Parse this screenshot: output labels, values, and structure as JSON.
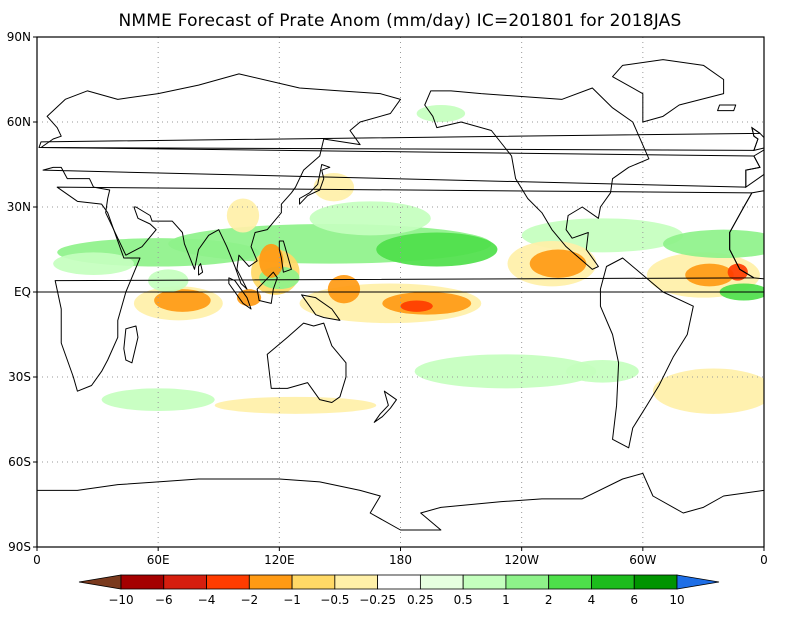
{
  "title": "NMME Forecast of Prate Anom (mm/day) IC=201801 for 2018JAS",
  "y_ticks": [
    {
      "label": "90N",
      "lat": 90
    },
    {
      "label": "60N",
      "lat": 60
    },
    {
      "label": "30N",
      "lat": 30
    },
    {
      "label": "EQ",
      "lat": 0
    },
    {
      "label": "30S",
      "lat": -30
    },
    {
      "label": "60S",
      "lat": -60
    },
    {
      "label": "90S",
      "lat": -90
    }
  ],
  "x_ticks": [
    {
      "label": "0",
      "lon": 0
    },
    {
      "label": "60E",
      "lon": 60
    },
    {
      "label": "120E",
      "lon": 120
    },
    {
      "label": "180",
      "lon": 180
    },
    {
      "label": "120W",
      "lon": 240
    },
    {
      "label": "60W",
      "lon": 300
    },
    {
      "label": "0",
      "lon": 360
    }
  ],
  "colorbar": {
    "labels": [
      "−10",
      "−6",
      "−4",
      "−2",
      "−1",
      "−0.5",
      "−0.25",
      "0.25",
      "0.5",
      "1",
      "2",
      "4",
      "6",
      "10"
    ],
    "colors": [
      "#7a3a1e",
      "#a40000",
      "#d61e0e",
      "#ff3c00",
      "#ff9a14",
      "#ffd966",
      "#fff0a8",
      "#ffffff",
      "#e6ffe0",
      "#c4ffbe",
      "#8ef28a",
      "#4ee04a",
      "#1cbc1c",
      "#009400",
      "#1e6ee6"
    ]
  },
  "anomaly_regions": [
    {
      "lon": 193,
      "lat": -4,
      "rx": 22,
      "ry": 4,
      "level": "-2"
    },
    {
      "lon": 188,
      "lat": -5,
      "rx": 8,
      "ry": 2,
      "level": "-4"
    },
    {
      "lon": 175,
      "lat": -4,
      "rx": 45,
      "ry": 7,
      "level": "-0.5"
    },
    {
      "lon": 152,
      "lat": 1,
      "rx": 8,
      "ry": 5,
      "level": "-2"
    },
    {
      "lon": 72,
      "lat": -3,
      "rx": 14,
      "ry": 4,
      "level": "-2"
    },
    {
      "lon": 70,
      "lat": -4,
      "rx": 22,
      "ry": 6,
      "level": "-0.5"
    },
    {
      "lon": 118,
      "lat": 7,
      "rx": 12,
      "ry": 8,
      "level": "-1"
    },
    {
      "lon": 116,
      "lat": 11,
      "rx": 6,
      "ry": 6,
      "level": "-2"
    },
    {
      "lon": 258,
      "lat": 10,
      "rx": 14,
      "ry": 5,
      "level": "-2"
    },
    {
      "lon": 255,
      "lat": 10,
      "rx": 22,
      "ry": 8,
      "level": "-0.5"
    },
    {
      "lon": 333,
      "lat": 6,
      "rx": 12,
      "ry": 4,
      "level": "-2"
    },
    {
      "lon": 330,
      "lat": 6,
      "rx": 28,
      "ry": 8,
      "level": "-0.5"
    },
    {
      "lon": 347,
      "lat": 7,
      "rx": 5,
      "ry": 3,
      "level": "-4"
    },
    {
      "lon": 335,
      "lat": -35,
      "rx": 30,
      "ry": 8,
      "level": "-0.5"
    },
    {
      "lon": 147,
      "lat": 37,
      "rx": 10,
      "ry": 5,
      "level": "-0.5"
    },
    {
      "lon": 105,
      "lat": -2,
      "rx": 6,
      "ry": 3,
      "level": "-2"
    },
    {
      "lon": 102,
      "lat": 27,
      "rx": 8,
      "ry": 6,
      "level": "-0.5"
    },
    {
      "lon": 65,
      "lat": 4,
      "rx": 10,
      "ry": 4,
      "level": "0.5"
    },
    {
      "lon": 145,
      "lat": 17,
      "rx": 80,
      "ry": 7,
      "level": "1"
    },
    {
      "lon": 198,
      "lat": 15,
      "rx": 30,
      "ry": 6,
      "level": "2"
    },
    {
      "lon": 60,
      "lat": 14,
      "rx": 50,
      "ry": 5,
      "level": "1"
    },
    {
      "lon": 165,
      "lat": 26,
      "rx": 30,
      "ry": 6,
      "level": "0.5"
    },
    {
      "lon": 280,
      "lat": 20,
      "rx": 40,
      "ry": 6,
      "level": "0.5"
    },
    {
      "lon": 340,
      "lat": 17,
      "rx": 30,
      "ry": 5,
      "level": "1"
    },
    {
      "lon": 350,
      "lat": 0,
      "rx": 12,
      "ry": 3,
      "level": "2"
    },
    {
      "lon": 60,
      "lat": -38,
      "rx": 28,
      "ry": 4,
      "level": "0.5"
    },
    {
      "lon": 232,
      "lat": -28,
      "rx": 45,
      "ry": 6,
      "level": "0.5"
    },
    {
      "lon": 280,
      "lat": -28,
      "rx": 18,
      "ry": 4,
      "level": "0.5"
    },
    {
      "lon": 128,
      "lat": -40,
      "rx": 40,
      "ry": 3,
      "level": "-0.5"
    },
    {
      "lon": 200,
      "lat": 63,
      "rx": 12,
      "ry": 3,
      "level": "0.5"
    },
    {
      "lon": 120,
      "lat": 5,
      "rx": 10,
      "ry": 4,
      "level": "1"
    },
    {
      "lon": 28,
      "lat": 10,
      "rx": 20,
      "ry": 4,
      "level": "0.5"
    }
  ],
  "land_outlines": [
    {
      "name": "africa",
      "points": [
        [
          -17,
          15
        ],
        [
          -17,
          21
        ],
        [
          -10,
          30
        ],
        [
          -6,
          35
        ],
        [
          10,
          37
        ],
        [
          20,
          32
        ],
        [
          32,
          31
        ],
        [
          35,
          28
        ],
        [
          43,
          12
        ],
        [
          51,
          12
        ],
        [
          44,
          0
        ],
        [
          40,
          -10
        ],
        [
          40,
          -16
        ],
        [
          35,
          -24
        ],
        [
          32,
          -28
        ],
        [
          27,
          -33
        ],
        [
          20,
          -35
        ],
        [
          18,
          -30
        ],
        [
          12,
          -18
        ],
        [
          12,
          -6
        ],
        [
          9,
          4
        ],
        [
          -5,
          5
        ],
        [
          -12,
          8
        ],
        [
          -17,
          15
        ]
      ]
    },
    {
      "name": "eurasia",
      "points": [
        [
          -9,
          37
        ],
        [
          -9,
          43
        ],
        [
          -2,
          44
        ],
        [
          -5,
          48
        ],
        [
          2,
          51
        ],
        [
          8,
          54
        ],
        [
          12,
          55
        ],
        [
          10,
          58
        ],
        [
          5,
          62
        ],
        [
          14,
          68
        ],
        [
          25,
          71
        ],
        [
          40,
          68
        ],
        [
          60,
          70
        ],
        [
          80,
          73
        ],
        [
          100,
          77
        ],
        [
          130,
          72
        ],
        [
          150,
          71
        ],
        [
          170,
          70
        ],
        [
          180,
          68
        ],
        [
          175,
          63
        ],
        [
          160,
          60
        ],
        [
          155,
          57
        ],
        [
          160,
          52
        ],
        [
          142,
          54
        ],
        [
          140,
          48
        ],
        [
          132,
          43
        ],
        [
          128,
          37
        ],
        [
          126,
          35
        ],
        [
          121,
          31
        ],
        [
          121,
          28
        ],
        [
          114,
          22
        ],
        [
          108,
          21
        ],
        [
          106,
          16
        ],
        [
          109,
          11
        ],
        [
          105,
          9
        ],
        [
          100,
          13
        ],
        [
          99,
          8
        ],
        [
          104,
          1
        ],
        [
          101,
          3
        ],
        [
          98,
          9
        ],
        [
          94,
          16
        ],
        [
          90,
          22
        ],
        [
          85,
          20
        ],
        [
          80,
          15
        ],
        [
          78,
          8
        ],
        [
          73,
          17
        ],
        [
          72,
          21
        ],
        [
          67,
          25
        ],
        [
          57,
          25
        ],
        [
          56,
          27
        ],
        [
          49,
          30
        ],
        [
          48,
          30
        ],
        [
          50,
          26
        ],
        [
          56,
          24
        ],
        [
          59,
          22
        ],
        [
          52,
          16
        ],
        [
          44,
          13
        ],
        [
          38,
          22
        ],
        [
          34,
          28
        ],
        [
          35,
          33
        ],
        [
          36,
          36
        ],
        [
          28,
          37
        ],
        [
          26,
          40
        ],
        [
          20,
          40
        ],
        [
          15,
          40
        ],
        [
          12,
          44
        ],
        [
          8,
          44
        ],
        [
          3,
          43
        ],
        [
          -9,
          37
        ]
      ]
    },
    {
      "name": "north-america",
      "points": [
        [
          192,
          66
        ],
        [
          195,
          71
        ],
        [
          205,
          71
        ],
        [
          220,
          70
        ],
        [
          240,
          69
        ],
        [
          260,
          68
        ],
        [
          275,
          72
        ],
        [
          285,
          65
        ],
        [
          295,
          60
        ],
        [
          303,
          47
        ],
        [
          293,
          44
        ],
        [
          285,
          40
        ],
        [
          284,
          35
        ],
        [
          279,
          30
        ],
        [
          278,
          26
        ],
        [
          270,
          30
        ],
        [
          263,
          27
        ],
        [
          262,
          22
        ],
        [
          265,
          19
        ],
        [
          273,
          21
        ],
        [
          272,
          15
        ],
        [
          278,
          9
        ],
        [
          275,
          8
        ],
        [
          262,
          16
        ],
        [
          255,
          22
        ],
        [
          250,
          28
        ],
        [
          243,
          33
        ],
        [
          237,
          40
        ],
        [
          235,
          48
        ],
        [
          225,
          57
        ],
        [
          210,
          60
        ],
        [
          198,
          58
        ],
        [
          196,
          62
        ],
        [
          192,
          66
        ]
      ]
    },
    {
      "name": "south-america",
      "points": [
        [
          282,
          9
        ],
        [
          290,
          12
        ],
        [
          300,
          6
        ],
        [
          310,
          0
        ],
        [
          325,
          -5
        ],
        [
          322,
          -15
        ],
        [
          315,
          -23
        ],
        [
          308,
          -33
        ],
        [
          302,
          -40
        ],
        [
          295,
          -48
        ],
        [
          293,
          -55
        ],
        [
          285,
          -52
        ],
        [
          287,
          -40
        ],
        [
          288,
          -25
        ],
        [
          285,
          -15
        ],
        [
          279,
          -5
        ],
        [
          279,
          1
        ],
        [
          282,
          9
        ]
      ]
    },
    {
      "name": "australia",
      "points": [
        [
          114,
          -22
        ],
        [
          116,
          -34
        ],
        [
          124,
          -34
        ],
        [
          134,
          -32
        ],
        [
          140,
          -38
        ],
        [
          146,
          -39
        ],
        [
          150,
          -37
        ],
        [
          153,
          -30
        ],
        [
          153,
          -25
        ],
        [
          146,
          -19
        ],
        [
          142,
          -11
        ],
        [
          137,
          -12
        ],
        [
          132,
          -11
        ],
        [
          124,
          -16
        ],
        [
          114,
          -22
        ]
      ]
    },
    {
      "name": "greenland",
      "points": [
        [
          300,
          60
        ],
        [
          310,
          62
        ],
        [
          318,
          66
        ],
        [
          340,
          70
        ],
        [
          340,
          75
        ],
        [
          330,
          80
        ],
        [
          310,
          82
        ],
        [
          290,
          80
        ],
        [
          285,
          76
        ],
        [
          300,
          70
        ],
        [
          300,
          60
        ]
      ]
    },
    {
      "name": "madagascar",
      "points": [
        [
          44,
          -13
        ],
        [
          49,
          -12
        ],
        [
          50,
          -16
        ],
        [
          47,
          -25
        ],
        [
          44,
          -24
        ],
        [
          43,
          -20
        ],
        [
          44,
          -13
        ]
      ]
    },
    {
      "name": "borneo",
      "points": [
        [
          109,
          1
        ],
        [
          113,
          4
        ],
        [
          117,
          7
        ],
        [
          119,
          5
        ],
        [
          117,
          1
        ],
        [
          116,
          -4
        ],
        [
          110,
          -3
        ],
        [
          109,
          1
        ]
      ]
    },
    {
      "name": "sumatra",
      "points": [
        [
          95,
          5
        ],
        [
          98,
          4
        ],
        [
          104,
          -2
        ],
        [
          106,
          -6
        ],
        [
          102,
          -4
        ],
        [
          95,
          3
        ],
        [
          95,
          5
        ]
      ]
    },
    {
      "name": "new-guinea",
      "points": [
        [
          131,
          -1
        ],
        [
          138,
          -2
        ],
        [
          146,
          -6
        ],
        [
          150,
          -10
        ],
        [
          142,
          -9
        ],
        [
          138,
          -8
        ],
        [
          131,
          -1
        ]
      ]
    },
    {
      "name": "japan",
      "points": [
        [
          130,
          31
        ],
        [
          134,
          34
        ],
        [
          140,
          36
        ],
        [
          142,
          40
        ],
        [
          141,
          43
        ],
        [
          145,
          44
        ],
        [
          141,
          45
        ],
        [
          139,
          38
        ],
        [
          135,
          35
        ],
        [
          130,
          33
        ],
        [
          130,
          31
        ]
      ]
    },
    {
      "name": "british-isles",
      "points": [
        [
          -5,
          50
        ],
        [
          1,
          51
        ],
        [
          2,
          53
        ],
        [
          -2,
          56
        ],
        [
          -6,
          58
        ],
        [
          -5,
          55
        ],
        [
          -3,
          54
        ],
        [
          -5,
          50
        ]
      ]
    },
    {
      "name": "new-zealand",
      "points": [
        [
          172,
          -35
        ],
        [
          178,
          -38
        ],
        [
          175,
          -41
        ],
        [
          171,
          -44
        ],
        [
          167,
          -46
        ],
        [
          170,
          -43
        ],
        [
          174,
          -40
        ],
        [
          172,
          -35
        ]
      ]
    },
    {
      "name": "antarctica",
      "points": [
        [
          0,
          -70
        ],
        [
          20,
          -70
        ],
        [
          40,
          -68
        ],
        [
          60,
          -67
        ],
        [
          80,
          -66
        ],
        [
          100,
          -66
        ],
        [
          120,
          -66
        ],
        [
          140,
          -67
        ],
        [
          160,
          -70
        ],
        [
          170,
          -72
        ],
        [
          165,
          -78
        ],
        [
          180,
          -84
        ],
        [
          200,
          -84
        ],
        [
          190,
          -78
        ],
        [
          200,
          -76
        ],
        [
          230,
          -74
        ],
        [
          250,
          -73
        ],
        [
          270,
          -73
        ],
        [
          290,
          -66
        ],
        [
          300,
          -64
        ],
        [
          305,
          -72
        ],
        [
          320,
          -78
        ],
        [
          330,
          -76
        ],
        [
          340,
          -72
        ],
        [
          360,
          -70
        ]
      ]
    },
    {
      "name": "sri-lanka",
      "points": [
        [
          80,
          6
        ],
        [
          82,
          7
        ],
        [
          81,
          10
        ],
        [
          80,
          9
        ],
        [
          80,
          6
        ]
      ]
    },
    {
      "name": "philippines",
      "points": [
        [
          120,
          18
        ],
        [
          122,
          18
        ],
        [
          124,
          13
        ],
        [
          126,
          8
        ],
        [
          122,
          7
        ],
        [
          121,
          12
        ],
        [
          120,
          15
        ],
        [
          120,
          18
        ]
      ]
    },
    {
      "name": "iceland",
      "points": [
        [
          337,
          64
        ],
        [
          345,
          64
        ],
        [
          346,
          66
        ],
        [
          338,
          66
        ],
        [
          337,
          64
        ]
      ]
    }
  ]
}
